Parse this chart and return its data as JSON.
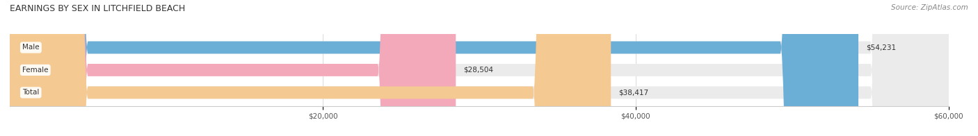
{
  "title": "EARNINGS BY SEX IN LITCHFIELD BEACH",
  "source": "Source: ZipAtlas.com",
  "categories": [
    "Male",
    "Female",
    "Total"
  ],
  "values": [
    54231,
    28504,
    38417
  ],
  "labels": [
    "$54,231",
    "$28,504",
    "$38,417"
  ],
  "bar_colors": [
    "#6baed6",
    "#f4a9bb",
    "#f5c992"
  ],
  "bar_background": "#e8e8e8",
  "xmin": 0,
  "xmax": 60000,
  "xticks": [
    20000,
    40000,
    60000
  ],
  "xtick_labels": [
    "$20,000",
    "$40,000",
    "$60,000"
  ],
  "figsize": [
    14.06,
    1.96
  ],
  "dpi": 100,
  "bar_height": 0.55,
  "title_fontsize": 9,
  "label_fontsize": 7.5,
  "tick_fontsize": 7.5,
  "source_fontsize": 7.5
}
